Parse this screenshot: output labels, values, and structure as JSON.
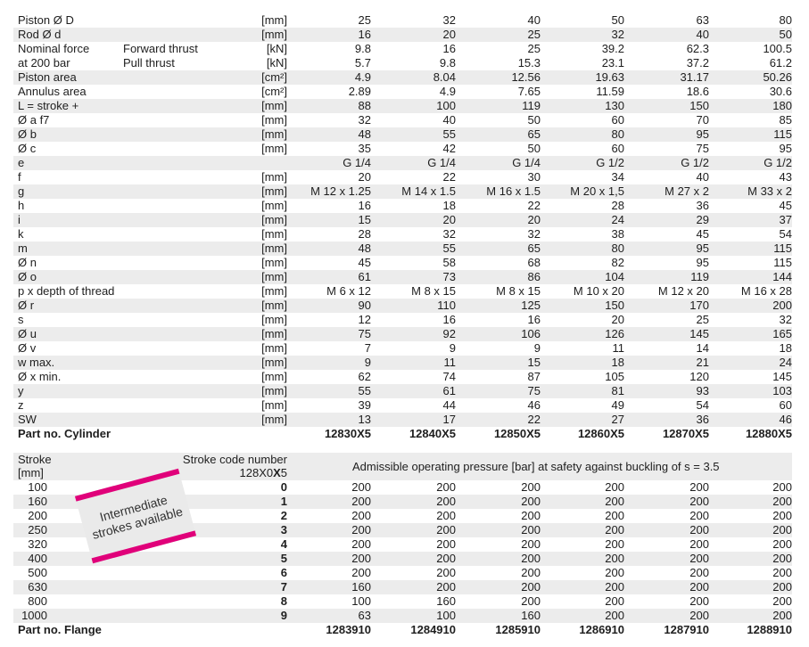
{
  "cylinder_table": {
    "rows": [
      {
        "label": "Piston Ø D",
        "label2": "",
        "unit": "[mm]",
        "values": [
          "25",
          "32",
          "40",
          "50",
          "63",
          "80"
        ]
      },
      {
        "label": "Rod Ø d",
        "label2": "",
        "unit": "[mm]",
        "values": [
          "16",
          "20",
          "25",
          "32",
          "40",
          "50"
        ]
      },
      {
        "label": "Nominal force",
        "label2": "Forward thrust",
        "unit": "[kN]",
        "values": [
          "9.8",
          "16",
          "25",
          "39.2",
          "62.3",
          "100.5"
        ]
      },
      {
        "label": "at 200 bar",
        "label2": "Pull thrust",
        "unit": "[kN]",
        "values": [
          "5.7",
          "9.8",
          "15.3",
          "23.1",
          "37.2",
          "61.2"
        ]
      },
      {
        "label": "Piston area",
        "label2": "",
        "unit": "[cm²]",
        "values": [
          "4.9",
          "8.04",
          "12.56",
          "19.63",
          "31.17",
          "50.26"
        ]
      },
      {
        "label": "Annulus area",
        "label2": "",
        "unit": "[cm²]",
        "values": [
          "2.89",
          "4.9",
          "7.65",
          "11.59",
          "18.6",
          "30.6"
        ]
      },
      {
        "label": "L = stroke +",
        "label2": "",
        "unit": "[mm]",
        "values": [
          "88",
          "100",
          "119",
          "130",
          "150",
          "180"
        ]
      },
      {
        "label": "Ø a f7",
        "label2": "",
        "unit": "[mm]",
        "values": [
          "32",
          "40",
          "50",
          "60",
          "70",
          "85"
        ]
      },
      {
        "label": "Ø b",
        "label2": "",
        "unit": "[mm]",
        "values": [
          "48",
          "55",
          "65",
          "80",
          "95",
          "115"
        ]
      },
      {
        "label": "Ø c",
        "label2": "",
        "unit": "[mm]",
        "values": [
          "35",
          "42",
          "50",
          "60",
          "75",
          "95"
        ]
      },
      {
        "label": "e",
        "label2": "",
        "unit": "",
        "values": [
          "G 1/4",
          "G 1/4",
          "G 1/4",
          "G 1/2",
          "G 1/2",
          "G 1/2"
        ]
      },
      {
        "label": "f",
        "label2": "",
        "unit": "[mm]",
        "values": [
          "20",
          "22",
          "30",
          "34",
          "40",
          "43"
        ]
      },
      {
        "label": "g",
        "label2": "",
        "unit": "[mm]",
        "values": [
          "M 12 x 1.25",
          "M 14 x 1.5",
          "M 16 x 1.5",
          "M 20 x 1,5",
          "M 27 x 2",
          "M 33 x 2"
        ]
      },
      {
        "label": "h",
        "label2": "",
        "unit": "[mm]",
        "values": [
          "16",
          "18",
          "22",
          "28",
          "36",
          "45"
        ]
      },
      {
        "label": "i",
        "label2": "",
        "unit": "[mm]",
        "values": [
          "15",
          "20",
          "20",
          "24",
          "29",
          "37"
        ]
      },
      {
        "label": "k",
        "label2": "",
        "unit": "[mm]",
        "values": [
          "28",
          "32",
          "32",
          "38",
          "45",
          "54"
        ]
      },
      {
        "label": "m",
        "label2": "",
        "unit": "[mm]",
        "values": [
          "48",
          "55",
          "65",
          "80",
          "95",
          "115"
        ]
      },
      {
        "label": "Ø n",
        "label2": "",
        "unit": "[mm]",
        "values": [
          "45",
          "58",
          "68",
          "82",
          "95",
          "115"
        ]
      },
      {
        "label": "Ø o",
        "label2": "",
        "unit": "[mm]",
        "values": [
          "61",
          "73",
          "86",
          "104",
          "119",
          "144"
        ]
      },
      {
        "label": "p x depth of thread",
        "label2": "",
        "unit": "[mm]",
        "values": [
          "M 6 x 12",
          "M 8 x 15",
          "M 8 x 15",
          "M 10 x 20",
          "M 12 x 20",
          "M 16 x 28"
        ]
      },
      {
        "label": "Ø r",
        "label2": "",
        "unit": "[mm]",
        "values": [
          "90",
          "110",
          "125",
          "150",
          "170",
          "200"
        ]
      },
      {
        "label": "s",
        "label2": "",
        "unit": "[mm]",
        "values": [
          "12",
          "16",
          "16",
          "20",
          "25",
          "32"
        ]
      },
      {
        "label": "Ø u",
        "label2": "",
        "unit": "[mm]",
        "values": [
          "75",
          "92",
          "106",
          "126",
          "145",
          "165"
        ]
      },
      {
        "label": "Ø v",
        "label2": "",
        "unit": "[mm]",
        "values": [
          "7",
          "9",
          "9",
          "11",
          "14",
          "18"
        ]
      },
      {
        "label": "w max.",
        "label2": "",
        "unit": "[mm]",
        "values": [
          "9",
          "11",
          "15",
          "18",
          "21",
          "24"
        ]
      },
      {
        "label": "Ø x min.",
        "label2": "",
        "unit": "[mm]",
        "values": [
          "62",
          "74",
          "87",
          "105",
          "120",
          "145"
        ]
      },
      {
        "label": "y",
        "label2": "",
        "unit": "[mm]",
        "values": [
          "55",
          "61",
          "75",
          "81",
          "93",
          "103"
        ]
      },
      {
        "label": "z",
        "label2": "",
        "unit": "[mm]",
        "values": [
          "39",
          "44",
          "46",
          "49",
          "54",
          "60"
        ]
      },
      {
        "label": "SW",
        "label2": "",
        "unit": "[mm]",
        "values": [
          "13",
          "17",
          "22",
          "27",
          "36",
          "46"
        ]
      }
    ],
    "part_label": "Part no. Cylinder",
    "part_numbers": [
      "12830X5",
      "12840X5",
      "12850X5",
      "12860X5",
      "12870X5",
      "12880X5"
    ]
  },
  "stroke_table": {
    "header": {
      "stroke": "Stroke",
      "stroke_unit": "[mm]",
      "code_title": "Stroke code number",
      "code_prefix": "128X0",
      "code_bold": "X",
      "code_suffix": "5",
      "pressure_title": "Admissible operating pressure [bar] at safety against buckling of s = 3.5"
    },
    "rows": [
      {
        "stroke": "100",
        "code": "0",
        "values": [
          "200",
          "200",
          "200",
          "200",
          "200",
          "200"
        ]
      },
      {
        "stroke": "160",
        "code": "1",
        "values": [
          "200",
          "200",
          "200",
          "200",
          "200",
          "200"
        ]
      },
      {
        "stroke": "200",
        "code": "2",
        "values": [
          "200",
          "200",
          "200",
          "200",
          "200",
          "200"
        ]
      },
      {
        "stroke": "250",
        "code": "3",
        "values": [
          "200",
          "200",
          "200",
          "200",
          "200",
          "200"
        ]
      },
      {
        "stroke": "320",
        "code": "4",
        "values": [
          "200",
          "200",
          "200",
          "200",
          "200",
          "200"
        ]
      },
      {
        "stroke": "400",
        "code": "5",
        "values": [
          "200",
          "200",
          "200",
          "200",
          "200",
          "200"
        ]
      },
      {
        "stroke": "500",
        "code": "6",
        "values": [
          "200",
          "200",
          "200",
          "200",
          "200",
          "200"
        ]
      },
      {
        "stroke": "630",
        "code": "7",
        "values": [
          "160",
          "200",
          "200",
          "200",
          "200",
          "200"
        ]
      },
      {
        "stroke": "800",
        "code": "8",
        "values": [
          "100",
          "160",
          "200",
          "200",
          "200",
          "200"
        ]
      },
      {
        "stroke": "1000",
        "code": "9",
        "values": [
          "63",
          "100",
          "160",
          "200",
          "200",
          "200"
        ]
      }
    ],
    "part_label": "Part no. Flange",
    "part_numbers": [
      "1283910",
      "1284910",
      "1285910",
      "1286910",
      "1287910",
      "1288910"
    ]
  },
  "badge": {
    "line1": "Intermediate",
    "line2": "strokes available",
    "accent_color": "#e0007a"
  }
}
